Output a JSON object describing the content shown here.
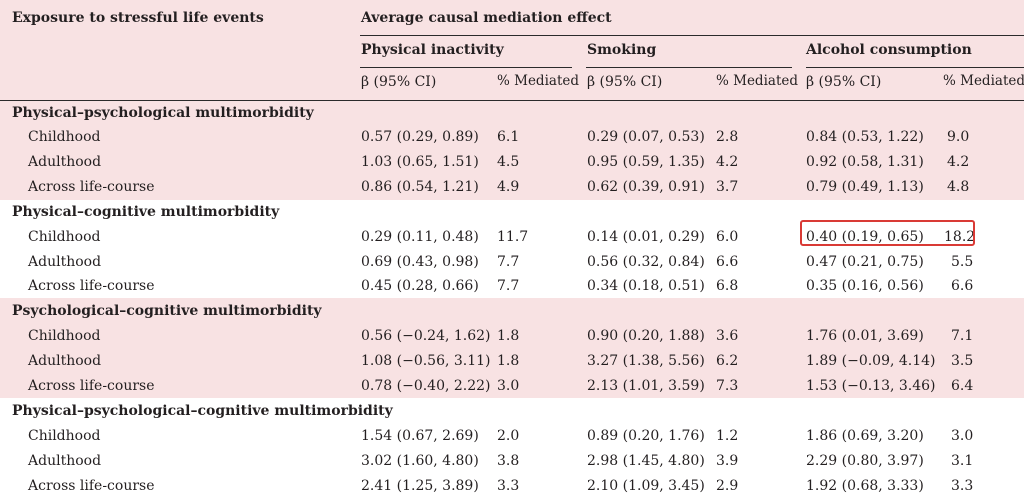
{
  "header": {
    "col0": "Exposure to stressful life events",
    "main": "Average causal mediation effect",
    "groups": [
      "Physical inactivity",
      "Smoking",
      "Alcohol consumption"
    ],
    "beta_label": "β (95% CI)",
    "pct_label": "% Mediated"
  },
  "sections": [
    {
      "title": "Physical–psychological multimorbidity",
      "rows": [
        {
          "label": "Childhood",
          "cells": [
            "0.57 (0.29, 0.89)",
            "6.1",
            "0.29 (0.07, 0.53)",
            "2.8",
            "0.84 (0.53, 1.22)",
            "9.0"
          ]
        },
        {
          "label": "Adulthood",
          "cells": [
            "1.03 (0.65, 1.51)",
            "4.5",
            "0.95 (0.59, 1.35)",
            "4.2",
            "0.92 (0.58, 1.31)",
            "4.2"
          ]
        },
        {
          "label": "Across life-course",
          "cells": [
            "0.86 (0.54, 1.21)",
            "4.9",
            "0.62 (0.39, 0.91)",
            "3.7",
            "0.79 (0.49, 1.13)",
            "4.8"
          ]
        }
      ]
    },
    {
      "title": "Physical–cognitive multimorbidity",
      "rows": [
        {
          "label": "Childhood",
          "cells": [
            "0.29 (0.11, 0.48)",
            "11.7",
            "0.14 (0.01, 0.29)",
            "6.0",
            "0.40 (0.19, 0.65)",
            "18.2"
          ]
        },
        {
          "label": "Adulthood",
          "cells": [
            "0.69 (0.43, 0.98)",
            "7.7",
            "0.56 (0.32, 0.84)",
            "6.6",
            "0.47 (0.21, 0.75)",
            "5.5"
          ]
        },
        {
          "label": "Across life-course",
          "cells": [
            "0.45 (0.28, 0.66)",
            "7.7",
            "0.34 (0.18, 0.51)",
            "6.8",
            "0.35 (0.16, 0.56)",
            "6.6"
          ]
        }
      ]
    },
    {
      "title": "Psychological–cognitive multimorbidity",
      "rows": [
        {
          "label": "Childhood",
          "cells": [
            "0.56 (−0.24, 1.62)",
            "1.8",
            "0.90 (0.20, 1.88)",
            "3.6",
            "1.76 (0.01, 3.69)",
            "7.1"
          ]
        },
        {
          "label": "Adulthood",
          "cells": [
            "1.08 (−0.56, 3.11)",
            "1.8",
            "3.27 (1.38, 5.56)",
            "6.2",
            "1.89 (−0.09, 4.14)",
            "3.5"
          ]
        },
        {
          "label": "Across life-course",
          "cells": [
            "0.78 (−0.40, 2.22)",
            "3.0",
            "2.13 (1.01, 3.59)",
            "7.3",
            "1.53 (−0.13, 3.46)",
            "6.4"
          ]
        }
      ]
    },
    {
      "title": "Physical–psychological–cognitive multimorbidity",
      "rows": [
        {
          "label": "Childhood",
          "cells": [
            "1.54 (0.67, 2.69)",
            "2.0",
            "0.89 (0.20, 1.76)",
            "1.2",
            "1.86 (0.69, 3.20)",
            "3.0"
          ]
        },
        {
          "label": "Adulthood",
          "cells": [
            "3.02 (1.60, 4.80)",
            "3.8",
            "2.98 (1.45, 4.80)",
            "3.9",
            "2.29 (0.80, 3.97)",
            "3.1"
          ]
        },
        {
          "label": "Across life-course",
          "cells": [
            "2.41 (1.25, 3.89)",
            "3.3",
            "2.10 (1.09, 3.45)",
            "2.9",
            "1.92 (0.68, 3.33)",
            "3.3"
          ]
        }
      ]
    }
  ],
  "colors": {
    "pink_band": "#f8e2e3",
    "white_band": "#ffffff",
    "highlight": "#d93a35",
    "text": "#231f20"
  }
}
